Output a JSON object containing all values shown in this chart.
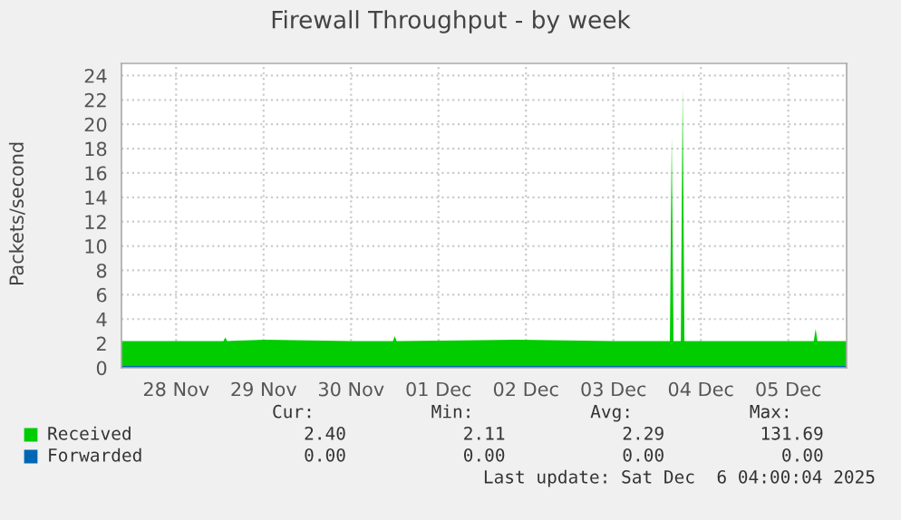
{
  "chart_data": {
    "type": "area",
    "title": "Firewall Throughput - by week",
    "ylabel": "Packets/second",
    "series": [
      {
        "name": "Received",
        "color": "#00cc00",
        "x": [
          "2025-11-27T21:00",
          "2025-11-28T12:00",
          "2025-11-29T01:00",
          "2025-11-29T01:30",
          "2025-11-29T02:00",
          "2025-11-29T12:30",
          "2025-11-30T12:00",
          "2025-11-30T23:30",
          "2025-12-01T00:00",
          "2025-12-01T00:30",
          "2025-12-02T10:00",
          "2025-12-03T12:00",
          "2025-12-04T03:30",
          "2025-12-04T04:00",
          "2025-12-04T04:30",
          "2025-12-04T06:30",
          "2025-12-04T07:00",
          "2025-12-04T07:30",
          "2025-12-05T12:00",
          "2025-12-05T19:00",
          "2025-12-05T19:30",
          "2025-12-05T20:00",
          "2025-12-06T04:00"
        ],
        "values": [
          2.2,
          2.2,
          2.2,
          2.5,
          2.2,
          2.3,
          2.2,
          2.2,
          2.6,
          2.2,
          2.3,
          2.2,
          2.2,
          19,
          2.2,
          2.2,
          23,
          2.2,
          2.2,
          2.2,
          3.2,
          2.2,
          2.2
        ]
      },
      {
        "name": "Forwarded",
        "type": "line",
        "color": "#0066b3",
        "x": [
          "2025-11-27T21:00",
          "2025-12-06T04:00"
        ],
        "values": [
          0,
          0
        ]
      }
    ],
    "xlim": [
      "2025-11-27T21:00",
      "2025-12-06T04:00"
    ],
    "xticks": [
      {
        "value": "2025-11-28T12:00",
        "label": "28 Nov"
      },
      {
        "value": "2025-11-29T12:00",
        "label": "29 Nov"
      },
      {
        "value": "2025-11-30T12:00",
        "label": "30 Nov"
      },
      {
        "value": "2025-12-01T12:00",
        "label": "01 Dec"
      },
      {
        "value": "2025-12-02T12:00",
        "label": "02 Dec"
      },
      {
        "value": "2025-12-03T12:00",
        "label": "03 Dec"
      },
      {
        "value": "2025-12-04T12:00",
        "label": "04 Dec"
      },
      {
        "value": "2025-12-05T12:00",
        "label": "05 Dec"
      }
    ],
    "ylim": [
      0,
      25
    ],
    "yticks": [
      0,
      2,
      4,
      6,
      8,
      10,
      12,
      14,
      16,
      18,
      20,
      22,
      24
    ],
    "grid": true,
    "legend": "bottom left",
    "annotations": [
      "Cur:           Min:           Avg:           Max:",
      "   2.40           2.11           2.29         131.69",
      "   0.00           0.00           0.00           0.00",
      "Last update: Sat Dec  6 04:00:04 2025"
    ]
  }
}
